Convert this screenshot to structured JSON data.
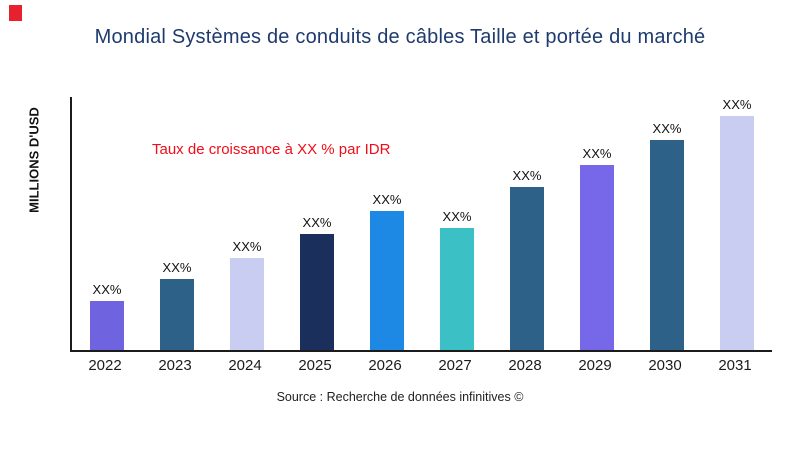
{
  "page": {
    "title": "Mondial Systèmes de conduits de câbles Taille et portée du marché",
    "ylabel": "MILLIONS D'USD",
    "annotation": "Taux de croissance à XX % par IDR",
    "source": "Source : Recherche de données infinitives ©"
  },
  "colors": {
    "title_blue": "#1e3a6e",
    "annotation_red": "#f20d1a",
    "brand_mark_red": "#e8212e",
    "axis": "#1b1b1b"
  },
  "chart_data": {
    "type": "bar",
    "title": "Mondial Systèmes de conduits de câbles Taille et portée du marché",
    "xlabel": "",
    "ylabel": "MILLIONS D'USD",
    "categories": [
      "2022",
      "2023",
      "2024",
      "2025",
      "2026",
      "2027",
      "2028",
      "2029",
      "2030",
      "2031"
    ],
    "values": [
      48,
      70,
      91,
      115,
      137,
      121,
      161,
      183,
      208,
      231
    ],
    "bar_labels": [
      "XX%",
      "XX%",
      "XX%",
      "XX%",
      "XX%",
      "XX%",
      "XX%",
      "XX%",
      "XX%",
      "XX%"
    ],
    "bar_colors": [
      "#6f63e0",
      "#2d6187",
      "#c9cdf2",
      "#1b2f5c",
      "#1e88e5",
      "#3bc0c6",
      "#2d6187",
      "#7668e8",
      "#2d6187",
      "#c9cdf2"
    ],
    "ylim": [
      0,
      250
    ],
    "grid": false,
    "legend": false,
    "annotation": {
      "text": "Taux de croissance à XX % par IDR",
      "color": "#f20d1a"
    },
    "source": "Source : Recherche de données infinitives ©"
  }
}
